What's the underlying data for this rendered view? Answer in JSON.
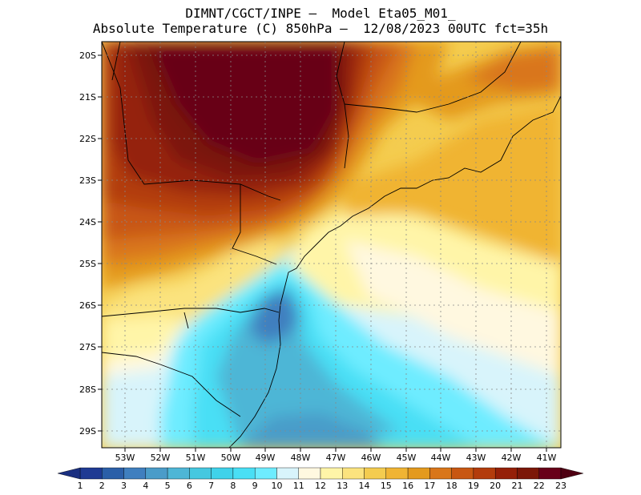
{
  "title": {
    "line1": "DIMNT/CGCT/INPE —  Model Eta05_M01_",
    "line2": "Absolute Temperature (C) 850hPa —  12/08/2023 00UTC fct=35h"
  },
  "map": {
    "latitude_labels": [
      "20S",
      "21S",
      "22S",
      "23S",
      "24S",
      "25S",
      "26S",
      "27S",
      "28S",
      "29S"
    ],
    "longitude_labels": [
      "53W",
      "52W",
      "51W",
      "50W",
      "49W",
      "48W",
      "47W",
      "46W",
      "45W",
      "44W",
      "43W",
      "42W",
      "41W"
    ]
  },
  "legend": {
    "labels": [
      "1",
      "2",
      "3",
      "4",
      "5",
      "6",
      "7",
      "8",
      "9",
      "10",
      "11",
      "12",
      "13",
      "14",
      "15",
      "16",
      "17",
      "18",
      "19",
      "20",
      "21",
      "22",
      "23"
    ],
    "colors": [
      "#1f3a93",
      "#2b5fa8",
      "#3f7fbf",
      "#4a9cc9",
      "#4eb6d6",
      "#45c8e0",
      "#3fd2ea",
      "#49dff5",
      "#6eecff",
      "#d8f4fb",
      "#fff8e0",
      "#fff5a8",
      "#fbe37e",
      "#f4cc4f",
      "#f0b433",
      "#e49a1e",
      "#d9761a",
      "#c85712",
      "#b33c0c",
      "#952008",
      "#7c1707",
      "#680019"
    ]
  }
}
